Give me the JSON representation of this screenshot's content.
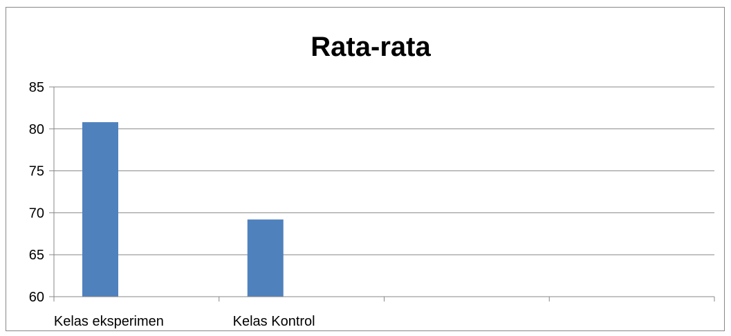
{
  "chart_data": {
    "type": "bar",
    "title": "Rata-rata",
    "categories": [
      "Kelas eksperimen",
      "Kelas Kontrol",
      "",
      ""
    ],
    "values": [
      80.8,
      69.2,
      null,
      null
    ],
    "ylim": [
      60,
      85
    ],
    "yticks": [
      60,
      65,
      70,
      75,
      80,
      85
    ],
    "grid": true,
    "bar_color": "#4F81BD"
  }
}
